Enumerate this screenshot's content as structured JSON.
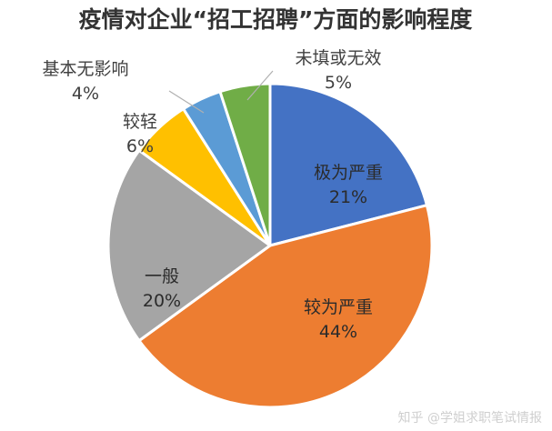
{
  "chart_data": {
    "type": "pie",
    "title": "疫情对企业“招工招聘”方面的影响程度",
    "slices": [
      {
        "name": "极为严重",
        "value": 21,
        "label": "21%",
        "color": "#4472C4"
      },
      {
        "name": "较为严重",
        "value": 44,
        "label": "44%",
        "color": "#ED7D31"
      },
      {
        "name": "一般",
        "value": 20,
        "label": "20%",
        "color": "#A5A5A5"
      },
      {
        "name": "较轻",
        "value": 6,
        "label": "6%",
        "color": "#FFC000"
      },
      {
        "name": "基本无影响",
        "value": 4,
        "label": "4%",
        "color": "#5B9BD5"
      },
      {
        "name": "未填或无效",
        "value": 5,
        "label": "5%",
        "color": "#70AD47"
      }
    ],
    "start_angle": "12 o'clock",
    "direction": "clockwise"
  },
  "watermark": "知乎 @学姐求职笔试情报"
}
